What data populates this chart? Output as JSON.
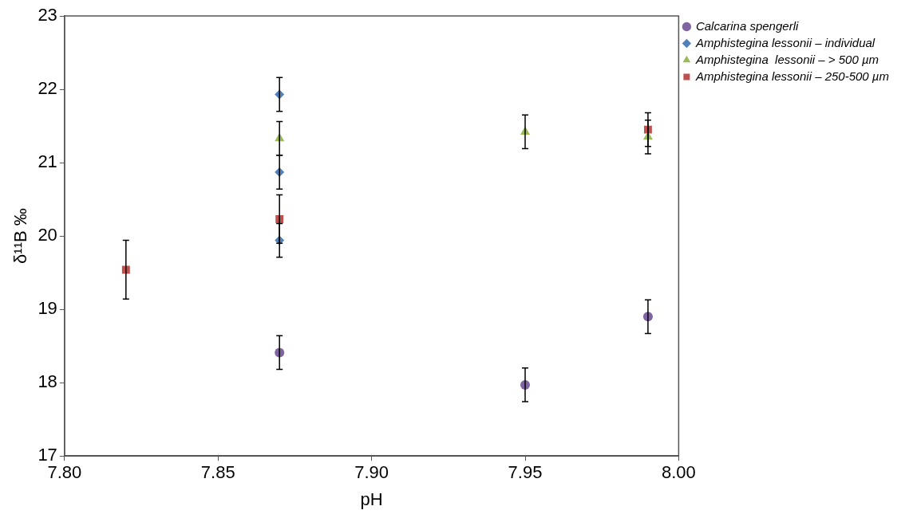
{
  "chart_data": {
    "type": "scatter",
    "xlabel": "pH",
    "ylabel": "δ¹¹B ‰",
    "xlim": [
      7.8,
      8.0
    ],
    "ylim": [
      17,
      23
    ],
    "xticks": [
      {
        "value": 7.8,
        "label": "7.80"
      },
      {
        "value": 7.85,
        "label": "7.85"
      },
      {
        "value": 7.9,
        "label": "7.90"
      },
      {
        "value": 7.95,
        "label": "7.95"
      },
      {
        "value": 8.0,
        "label": "8.00"
      }
    ],
    "yticks": [
      17,
      18,
      19,
      20,
      21,
      22,
      23
    ],
    "grid": false,
    "legend": "top right",
    "series": [
      {
        "name": "Calcarina spengerli",
        "color": "#8064a2",
        "marker": "circle",
        "x": [
          7.87,
          7.95,
          7.99
        ],
        "values": [
          18.41,
          17.97,
          18.9
        ],
        "errors": [
          0.23,
          0.23,
          0.23
        ]
      },
      {
        "name": "Amphistegina lessonii – individual",
        "color": "#4f81bd",
        "marker": "diamond",
        "x": [
          7.87,
          7.87,
          7.87
        ],
        "values": [
          21.93,
          20.87,
          19.94
        ],
        "errors": [
          0.23,
          0.23,
          0.23
        ]
      },
      {
        "name": "Amphistegina  lessonii – > 500 µm",
        "color": "#9bbb59",
        "marker": "triangle",
        "x": [
          7.87,
          7.95,
          7.99
        ],
        "values": [
          21.33,
          21.42,
          21.35
        ],
        "errors": [
          0.23,
          0.23,
          0.23
        ]
      },
      {
        "name": "Amphistegina lessonii – 250-500 µm",
        "color": "#c0504d",
        "marker": "square",
        "x": [
          7.82,
          7.87,
          7.99
        ],
        "values": [
          19.54,
          20.23,
          21.45
        ],
        "errors": [
          0.4,
          0.33,
          0.23
        ]
      }
    ]
  }
}
